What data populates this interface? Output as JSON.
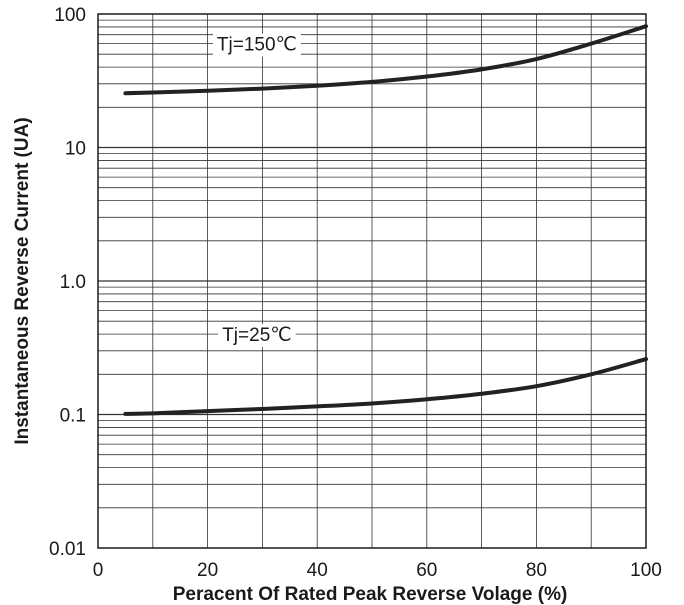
{
  "chart_data": {
    "type": "line",
    "title": "",
    "xlabel": "Peracent Of Rated Peak Reverse Volage (%)",
    "ylabel": "Instantaneous Reverse Current (UA)",
    "xlim": [
      0,
      100
    ],
    "ylim": [
      0.01,
      100
    ],
    "yscale": "log",
    "grid": true,
    "x_ticks": [
      0,
      20,
      40,
      60,
      80,
      100
    ],
    "x_tick_labels": [
      "0",
      "20",
      "40",
      "60",
      "80",
      "100"
    ],
    "y_ticks": [
      0.01,
      0.1,
      1,
      10,
      100
    ],
    "y_tick_labels": [
      "0.01",
      "0.1",
      "1.0",
      "10",
      "100"
    ],
    "series": [
      {
        "name": "Tj=150℃",
        "x": [
          5,
          10,
          20,
          30,
          40,
          50,
          60,
          70,
          80,
          90,
          100
        ],
        "y": [
          25.5,
          25.8,
          26.6,
          27.6,
          29.0,
          31.0,
          34.0,
          38.5,
          46.0,
          60.0,
          81.0
        ],
        "label_at": [
          29,
          60
        ]
      },
      {
        "name": "Tj=25℃",
        "x": [
          5,
          10,
          20,
          30,
          40,
          50,
          60,
          70,
          80,
          90,
          100
        ],
        "y": [
          0.101,
          0.102,
          0.106,
          0.11,
          0.115,
          0.121,
          0.13,
          0.143,
          0.163,
          0.2,
          0.26
        ],
        "label_at": [
          29,
          0.4
        ]
      }
    ]
  }
}
